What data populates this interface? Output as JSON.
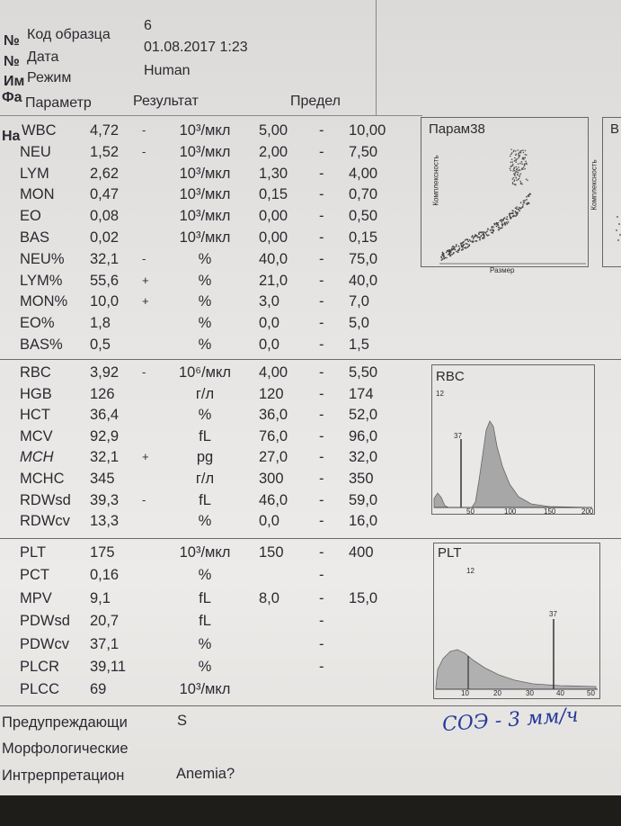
{
  "header": {
    "hash1": "№",
    "sample_label": "Код образца",
    "sample_value": "6",
    "hash2": "№",
    "date_label": "Дата",
    "date_value": "01.08.2017 1:23",
    "name_partial": "Им",
    "mode_label": "Режим",
    "mode_value": "Human",
    "fa_partial": "Фа",
    "na_partial": "На"
  },
  "columns": {
    "param": "Параметр",
    "result": "Результат",
    "limit": "Предел"
  },
  "wbc_rows": [
    {
      "name": "WBC",
      "value": "4,72",
      "flag": "-",
      "unit": "10³/мкл",
      "low": "5,00",
      "high": "10,00"
    },
    {
      "name": "NEU",
      "value": "1,52",
      "flag": "-",
      "unit": "10³/мкл",
      "low": "2,00",
      "high": "7,50"
    },
    {
      "name": "LYM",
      "value": "2,62",
      "flag": "",
      "unit": "10³/мкл",
      "low": "1,30",
      "high": "4,00"
    },
    {
      "name": "MON",
      "value": "0,47",
      "flag": "",
      "unit": "10³/мкл",
      "low": "0,15",
      "high": "0,70"
    },
    {
      "name": "EO",
      "value": "0,08",
      "flag": "",
      "unit": "10³/мкл",
      "low": "0,00",
      "high": "0,50"
    },
    {
      "name": "BAS",
      "value": "0,02",
      "flag": "",
      "unit": "10³/мкл",
      "low": "0,00",
      "high": "0,15"
    },
    {
      "name": "NEU%",
      "value": "32,1",
      "flag": "-",
      "unit": "%",
      "low": "40,0",
      "high": "75,0"
    },
    {
      "name": "LYM%",
      "value": "55,6",
      "flag": "+",
      "unit": "%",
      "low": "21,0",
      "high": "40,0"
    },
    {
      "name": "MON%",
      "value": "10,0",
      "flag": "+",
      "unit": "%",
      "low": "3,0",
      "high": "7,0"
    },
    {
      "name": "EO%",
      "value": "1,8",
      "flag": "",
      "unit": "%",
      "low": "0,0",
      "high": "5,0"
    },
    {
      "name": "BAS%",
      "value": "0,5",
      "flag": "",
      "unit": "%",
      "low": "0,0",
      "high": "1,5"
    }
  ],
  "rbc_rows": [
    {
      "name": "RBC",
      "value": "3,92",
      "flag": "-",
      "unit": "10⁶/мкл",
      "low": "4,00",
      "high": "5,50"
    },
    {
      "name": "HGB",
      "value": "126",
      "flag": "",
      "unit": "г/л",
      "low": "120",
      "high": "174"
    },
    {
      "name": "HCT",
      "value": "36,4",
      "flag": "",
      "unit": "%",
      "low": "36,0",
      "high": "52,0"
    },
    {
      "name": "MCV",
      "value": "92,9",
      "flag": "",
      "unit": "fL",
      "low": "76,0",
      "high": "96,0"
    },
    {
      "name": "MCH",
      "value": "32,1",
      "flag": "+",
      "unit": "pg",
      "low": "27,0",
      "high": "32,0"
    },
    {
      "name": "MCHC",
      "value": "345",
      "flag": "",
      "unit": "г/л",
      "low": "300",
      "high": "350"
    },
    {
      "name": "RDWsd",
      "value": "39,3",
      "flag": "-",
      "unit": "fL",
      "low": "46,0",
      "high": "59,0"
    },
    {
      "name": "RDWcv",
      "value": "13,3",
      "flag": "",
      "unit": "%",
      "low": "0,0",
      "high": "16,0"
    }
  ],
  "plt_rows": [
    {
      "name": "PLT",
      "value": "175",
      "flag": "",
      "unit": "10³/мкл",
      "low": "150",
      "high": "400"
    },
    {
      "name": "PCT",
      "value": "0,16",
      "flag": "",
      "unit": "%",
      "low": "",
      "high": ""
    },
    {
      "name": "MPV",
      "value": "9,1",
      "flag": "",
      "unit": "fL",
      "low": "8,0",
      "high": "15,0"
    },
    {
      "name": "PDWsd",
      "value": "20,7",
      "flag": "",
      "unit": "fL",
      "low": "",
      "high": ""
    },
    {
      "name": "PDWcv",
      "value": "37,1",
      "flag": "",
      "unit": "%",
      "low": "",
      "high": ""
    },
    {
      "name": "PLCR",
      "value": "39,11",
      "flag": "",
      "unit": "%",
      "low": "",
      "high": ""
    },
    {
      "name": "PLCC",
      "value": "69",
      "flag": "",
      "unit": "10³/мкл",
      "low": "",
      "high": ""
    }
  ],
  "range_dash": "-",
  "footer": {
    "warnings_label": "Предупреждающи",
    "warnings_value": "S",
    "morph_label": "Морфологические",
    "interp_label": "Интрерпретацион",
    "interp_value": "Anemia?",
    "handwriting": "СОЭ - 3 мм/ч"
  },
  "chart_data": [
    {
      "type": "scatter",
      "title": "Парам38",
      "xlabel": "Размер",
      "ylabel": "Комплексность",
      "clusters": [
        "upper",
        "lower-diagonal"
      ]
    },
    {
      "type": "area",
      "title": "RBC",
      "x_ticks": [
        "50",
        "100",
        "150",
        "200"
      ],
      "markers": [
        "12",
        "37"
      ]
    },
    {
      "type": "area",
      "title": "PLT",
      "x_ticks": [
        "10",
        "20",
        "30",
        "40",
        "50"
      ],
      "markers": [
        "12",
        "37"
      ]
    },
    {
      "type": "scatter",
      "title": "B",
      "ylabel": "Комплексность"
    }
  ]
}
